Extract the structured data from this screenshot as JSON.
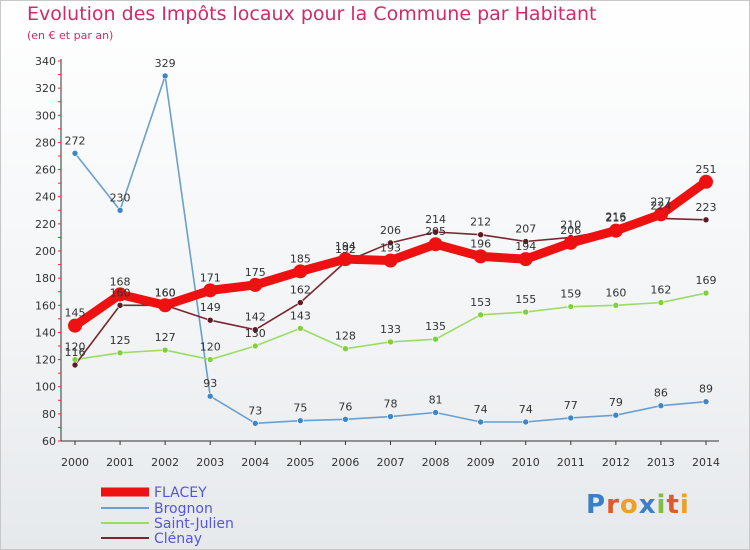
{
  "title": "Evolution des Impôts locaux pour la Commune par Habitant",
  "subtitle": "(en € et par an)",
  "logo_text": "Proxiti",
  "chart_data": {
    "type": "line",
    "x": [
      "2000",
      "2001",
      "2002",
      "2003",
      "2004",
      "2005",
      "2006",
      "2007",
      "2008",
      "2009",
      "2010",
      "2011",
      "2012",
      "2013",
      "2014"
    ],
    "ylim": [
      60,
      340
    ],
    "yticks": [
      60,
      80,
      100,
      120,
      140,
      160,
      180,
      200,
      220,
      240,
      260,
      280,
      300,
      320,
      340
    ],
    "grid": false,
    "legend_position": "bottom-left",
    "series": [
      {
        "name": "FLACEY",
        "color": "#ee1111",
        "values": [
          145,
          168,
          160,
          171,
          175,
          185,
          194,
          193,
          205,
          196,
          194,
          206,
          215,
          227,
          251
        ],
        "labels": [
          "145",
          "168",
          "160",
          "171",
          "175",
          "185",
          "194",
          "193",
          "205",
          "196",
          "194",
          "206",
          "215",
          "227",
          "251"
        ]
      },
      {
        "name": "Brognon",
        "color": "#6a9fd0",
        "values": [
          272,
          230,
          329,
          93,
          73,
          75,
          76,
          78,
          81,
          74,
          74,
          77,
          79,
          86,
          89
        ],
        "labels": [
          "272",
          "230",
          "329",
          "93",
          "73",
          "75",
          "76",
          "78",
          "81",
          "74",
          "74",
          "77",
          "79",
          "86",
          "89"
        ]
      },
      {
        "name": "Saint-Julien",
        "color": "#99dd66",
        "values": [
          120,
          125,
          127,
          120,
          130,
          143,
          128,
          133,
          135,
          153,
          155,
          159,
          160,
          162,
          169
        ],
        "labels": [
          "120",
          "125",
          "127",
          "120",
          "130",
          "143",
          "128",
          "133",
          "135",
          "153",
          "155",
          "159",
          "160",
          "162",
          "169"
        ]
      },
      {
        "name": "Clénay",
        "color": "#7a2630",
        "values": [
          116,
          160,
          160,
          149,
          142,
          162,
          192,
          206,
          214,
          212,
          207,
          210,
          216,
          224,
          223
        ],
        "labels": [
          "116",
          "160",
          "160",
          "149",
          "142",
          "162",
          "192",
          "206",
          "214",
          "212",
          "207",
          "210",
          "216",
          "224",
          "223"
        ]
      }
    ]
  }
}
